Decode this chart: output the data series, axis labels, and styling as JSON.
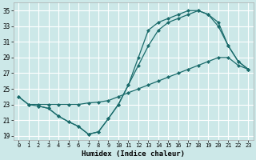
{
  "xlabel": "Humidex (Indice chaleur)",
  "bg_color": "#cce8e8",
  "grid_color": "#ffffff",
  "line_color": "#1a6b6b",
  "xlim": [
    -0.5,
    23.5
  ],
  "ylim": [
    18.5,
    36.0
  ],
  "xticks": [
    0,
    1,
    2,
    3,
    4,
    5,
    6,
    7,
    8,
    9,
    10,
    11,
    12,
    13,
    14,
    15,
    16,
    17,
    18,
    19,
    20,
    21,
    22,
    23
  ],
  "yticks": [
    19,
    21,
    23,
    25,
    27,
    29,
    31,
    33,
    35
  ],
  "line1_x": [
    0,
    1,
    2,
    3,
    4,
    5,
    6,
    7,
    8,
    9,
    10,
    11,
    12,
    13,
    14,
    15,
    16,
    17,
    18,
    19,
    20,
    21,
    22,
    23
  ],
  "line1_y": [
    24.0,
    23.0,
    22.8,
    22.5,
    21.5,
    20.8,
    20.2,
    19.2,
    19.5,
    21.2,
    23.0,
    25.5,
    29.0,
    32.5,
    33.5,
    34.0,
    34.5,
    35.0,
    35.0,
    34.5,
    33.5,
    30.5,
    28.5,
    27.5
  ],
  "line2_x": [
    0,
    1,
    2,
    3,
    4,
    5,
    6,
    7,
    8,
    9,
    10,
    11,
    12,
    13,
    14,
    15,
    16,
    17,
    18,
    19,
    20,
    21,
    22,
    23
  ],
  "line2_y": [
    24.0,
    23.0,
    23.0,
    23.0,
    23.0,
    23.0,
    23.0,
    23.2,
    23.3,
    23.5,
    24.0,
    24.5,
    25.0,
    25.5,
    26.0,
    26.5,
    27.0,
    27.5,
    28.0,
    28.5,
    29.0,
    29.0,
    28.0,
    27.5
  ],
  "line3_x": [
    2,
    3,
    4,
    5,
    6,
    7,
    8,
    9,
    10,
    11,
    12,
    13,
    14,
    15,
    16,
    17,
    18,
    19,
    20,
    21,
    22,
    23
  ],
  "line3_y": [
    22.8,
    22.5,
    21.5,
    20.8,
    20.2,
    19.2,
    19.5,
    21.2,
    23.0,
    25.5,
    28.0,
    30.5,
    32.5,
    33.5,
    34.0,
    34.5,
    35.0,
    34.5,
    33.0,
    30.5,
    28.5,
    27.5
  ]
}
